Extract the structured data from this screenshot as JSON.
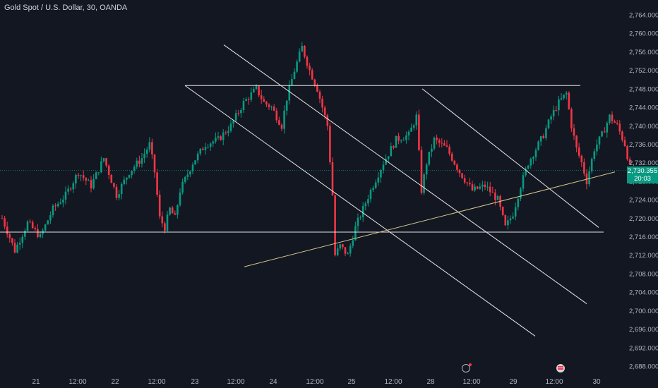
{
  "header": {
    "symbol_title": "Gold Spot / U.S. Dollar, 30, OANDA"
  },
  "last_price": {
    "value": "2,730.355",
    "countdown": "20:03",
    "color": "#089981"
  },
  "colors": {
    "background": "#131722",
    "up": "#089981",
    "down": "#f23645",
    "drawing": "#e6e6e6",
    "trendline": "#d4c48a"
  },
  "icons": {
    "event_a": "flash-icon",
    "event_b": "flag-icon"
  },
  "chart_data": {
    "type": "candlestick",
    "y_axis": {
      "position": "right",
      "min": 2688,
      "max": 2764,
      "ticks": [
        "2,764.000",
        "2,760.000",
        "2,756.000",
        "2,752.000",
        "2,748.000",
        "2,744.000",
        "2,740.000",
        "2,736.000",
        "2,732.000",
        "2,728.000",
        "2,724.000",
        "2,720.000",
        "2,716.000",
        "2,712.000",
        "2,708.000",
        "2,704.000",
        "2,700.000",
        "2,696.000",
        "2,692.000",
        "2,688.000"
      ]
    },
    "x_axis": {
      "labels": [
        "21",
        "12:00",
        "22",
        "12:00",
        "23",
        "12:00",
        "24",
        "12:00",
        "25",
        "12:00",
        "28",
        "12:00",
        "29",
        "12:00",
        "30"
      ]
    },
    "price_path": [
      [
        0,
        2720
      ],
      [
        5,
        2713
      ],
      [
        10,
        2719
      ],
      [
        15,
        2716
      ],
      [
        20,
        2722
      ],
      [
        25,
        2725
      ],
      [
        30,
        2730
      ],
      [
        35,
        2727
      ],
      [
        40,
        2733
      ],
      [
        45,
        2725
      ],
      [
        50,
        2730
      ],
      [
        55,
        2733
      ],
      [
        58,
        2736
      ],
      [
        60,
        2730
      ],
      [
        62,
        2720
      ],
      [
        64,
        2718
      ],
      [
        66,
        2722
      ],
      [
        68,
        2720
      ],
      [
        70,
        2726
      ],
      [
        75,
        2732
      ],
      [
        80,
        2736
      ],
      [
        85,
        2737
      ],
      [
        90,
        2740
      ],
      [
        95,
        2745
      ],
      [
        100,
        2748
      ],
      [
        103,
        2745
      ],
      [
        106,
        2744
      ],
      [
        110,
        2740
      ],
      [
        112,
        2746
      ],
      [
        115,
        2752
      ],
      [
        118,
        2757
      ],
      [
        121,
        2752
      ],
      [
        124,
        2748
      ],
      [
        126,
        2744
      ],
      [
        128,
        2740
      ],
      [
        130,
        2725
      ],
      [
        131,
        2712
      ],
      [
        133,
        2714
      ],
      [
        136,
        2712
      ],
      [
        139,
        2718
      ],
      [
        142,
        2722
      ],
      [
        145,
        2726
      ],
      [
        150,
        2732
      ],
      [
        155,
        2737
      ],
      [
        160,
        2738
      ],
      [
        163,
        2742
      ],
      [
        165,
        2726
      ],
      [
        167,
        2732
      ],
      [
        170,
        2737
      ],
      [
        175,
        2735
      ],
      [
        180,
        2730
      ],
      [
        185,
        2726
      ],
      [
        190,
        2727
      ],
      [
        195,
        2724
      ],
      [
        198,
        2718
      ],
      [
        201,
        2721
      ],
      [
        204,
        2727
      ],
      [
        207,
        2732
      ],
      [
        210,
        2735
      ],
      [
        213,
        2738
      ],
      [
        216,
        2742
      ],
      [
        219,
        2745
      ],
      [
        222,
        2747
      ],
      [
        224,
        2740
      ],
      [
        226,
        2735
      ],
      [
        228,
        2732
      ],
      [
        230,
        2728
      ],
      [
        233,
        2735
      ],
      [
        236,
        2738
      ],
      [
        239,
        2742
      ],
      [
        242,
        2740
      ],
      [
        245,
        2736
      ],
      [
        247,
        2731
      ]
    ],
    "drawings": {
      "horizontal_lines": [
        2748.7,
        2717
      ],
      "trend_lines": [
        {
          "from": [
            85,
            2748.7
          ],
          "to": [
            305,
            2694.5
          ]
        },
        {
          "from": [
            118,
            2757.5
          ],
          "to": [
            335,
            2701.5
          ]
        },
        {
          "from": [
            226,
            2748
          ],
          "to": [
            344,
            2718
          ]
        },
        {
          "from": [
            134,
            2709.5
          ],
          "to": [
            350,
            2730
          ]
        }
      ]
    }
  }
}
